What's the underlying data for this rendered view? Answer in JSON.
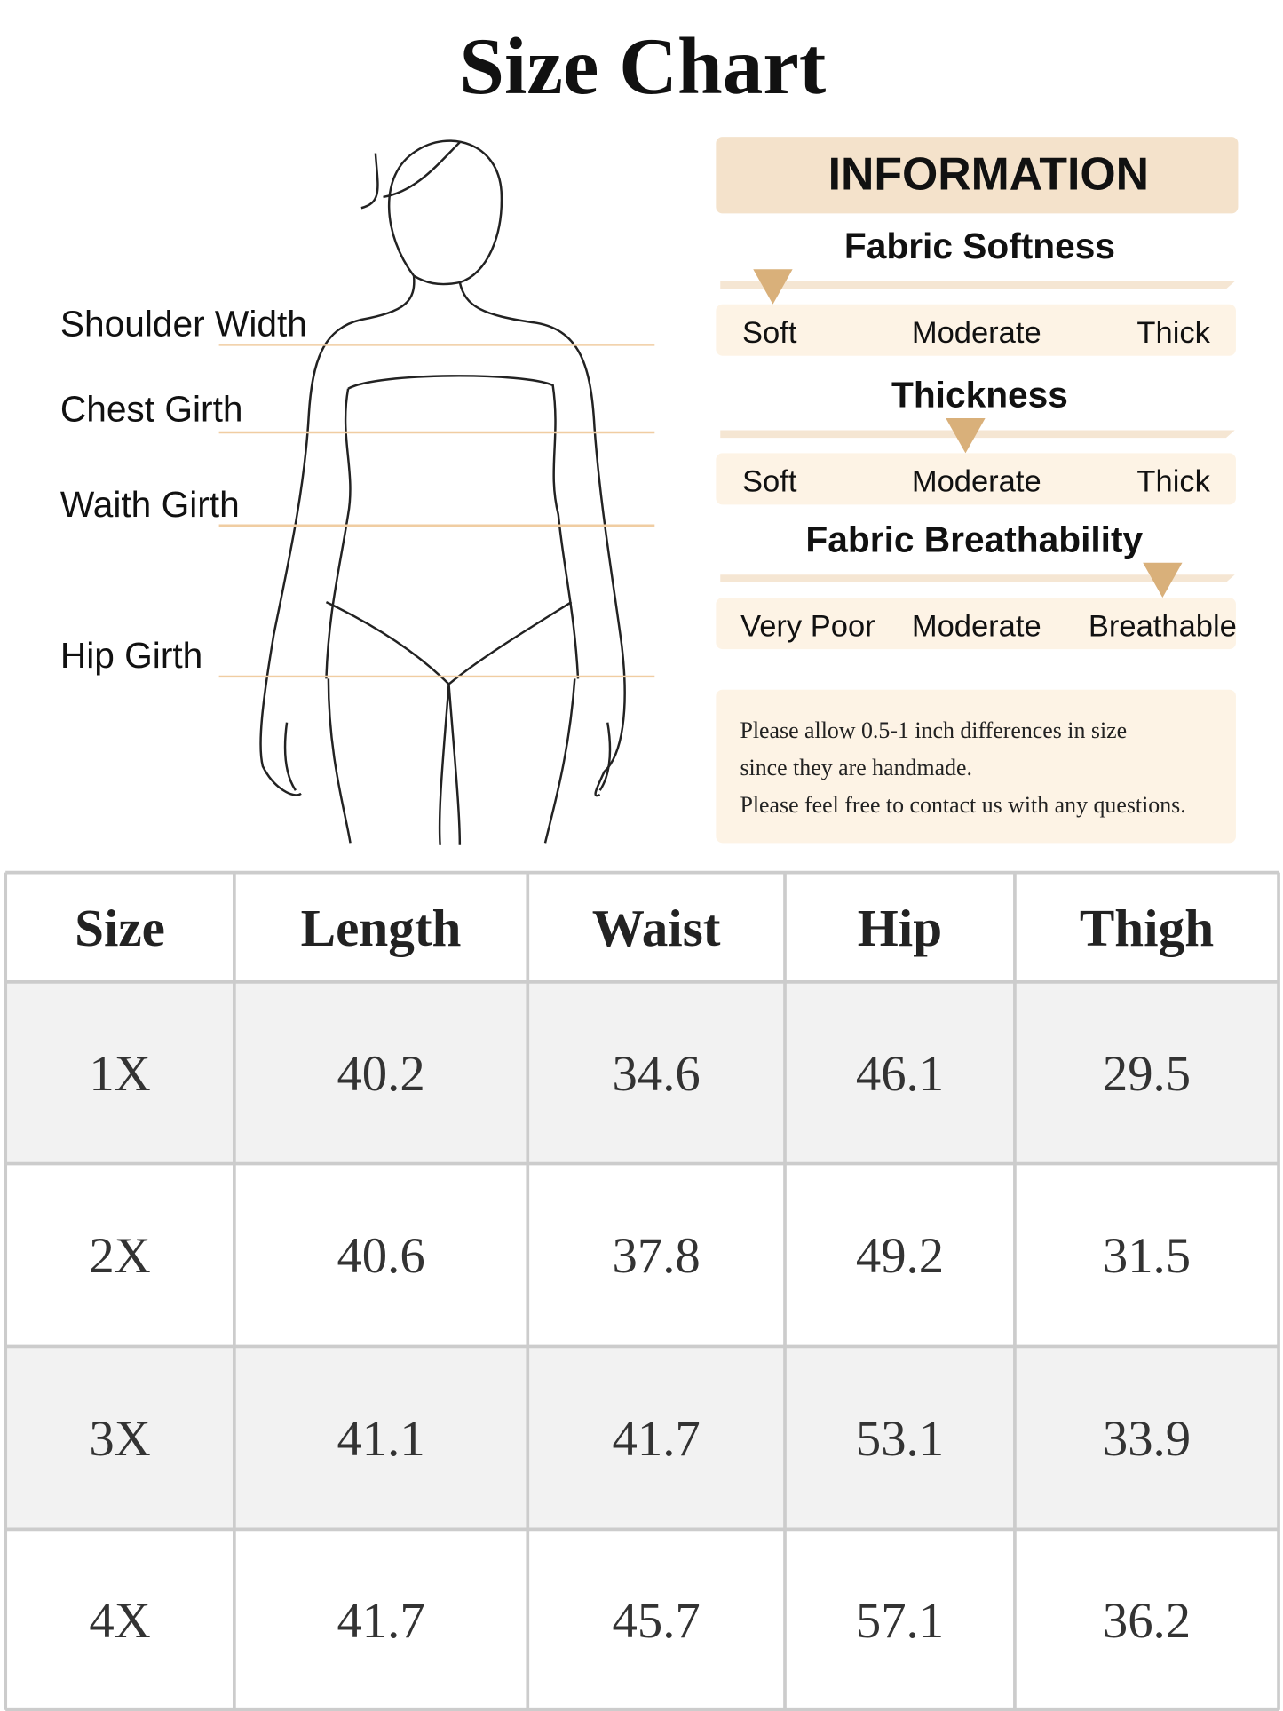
{
  "header": {
    "title": "Size Chart"
  },
  "figure": {
    "labels": [
      "Shoulder Width",
      "Chest Girth",
      "Waith Girth",
      "Hip Girth"
    ]
  },
  "information": {
    "title": "INFORMATION",
    "scales": [
      {
        "title": "Fabric Softness",
        "labels": [
          "Soft",
          "Moderate",
          "Thick"
        ]
      },
      {
        "title": "Thickness",
        "labels": [
          "Soft",
          "Moderate",
          "Thick"
        ]
      },
      {
        "title": "Fabric Breathability",
        "labels": [
          "Very Poor",
          "Moderate",
          "Breathable"
        ]
      }
    ],
    "note": [
      "Please allow 0.5-1 inch differences in size",
      "since they are handmade.",
      "Please feel free to contact us with any questions."
    ]
  },
  "table": {
    "columns": [
      "Size",
      "Length",
      "Waist",
      "Hip",
      "Thigh"
    ],
    "rows": [
      [
        "1X",
        "40.2",
        "34.6",
        "46.1",
        "29.5"
      ],
      [
        "2X",
        "40.6",
        "37.8",
        "49.2",
        "31.5"
      ],
      [
        "3X",
        "41.1",
        "41.7",
        "53.1",
        "33.9"
      ],
      [
        "4X",
        "41.7",
        "45.7",
        "57.1",
        "36.2"
      ]
    ]
  }
}
